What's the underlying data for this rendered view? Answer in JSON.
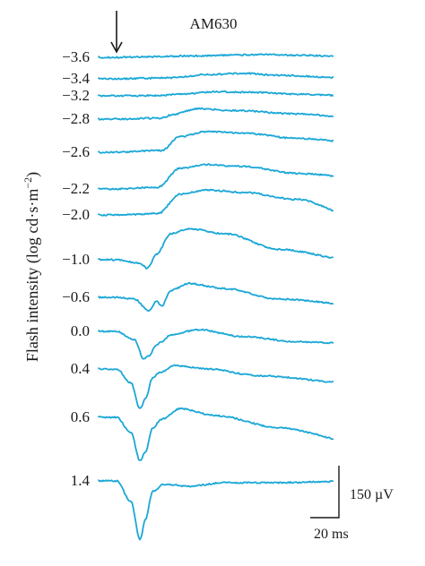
{
  "chart_data": {
    "type": "line",
    "title": "AM630",
    "ylabel": "Flash intensity (log cd·s·m⁻²)",
    "scalebar": {
      "amplitude_label": "150 µV",
      "time_label": "20 ms",
      "amplitude_uV": 150,
      "time_ms": 20
    },
    "stimulus_marker": "arrow",
    "x_unit": "ms",
    "y_unit": "µV",
    "series": [
      {
        "label": "−3.6",
        "intensity": -3.6,
        "points": [
          [
            0,
            0
          ],
          [
            20,
            -2
          ],
          [
            40,
            -4
          ],
          [
            60,
            -6
          ],
          [
            80,
            -8
          ],
          [
            100,
            -6
          ],
          [
            130,
            -2
          ]
        ]
      },
      {
        "label": "−3.4",
        "intensity": -3.4,
        "points": [
          [
            0,
            0
          ],
          [
            20,
            -2
          ],
          [
            30,
            -3
          ],
          [
            50,
            -12
          ],
          [
            70,
            -16
          ],
          [
            90,
            -10
          ],
          [
            130,
            -2
          ]
        ]
      },
      {
        "label": "−3.2",
        "intensity": -3.2,
        "points": [
          [
            0,
            0
          ],
          [
            25,
            -1
          ],
          [
            35,
            -5
          ],
          [
            55,
            -12
          ],
          [
            75,
            -10
          ],
          [
            100,
            -5
          ],
          [
            130,
            0
          ]
        ]
      },
      {
        "label": "−2.8",
        "intensity": -2.8,
        "points": [
          [
            0,
            0
          ],
          [
            25,
            -3
          ],
          [
            30,
            -12
          ],
          [
            45,
            -30
          ],
          [
            65,
            -25
          ],
          [
            100,
            -15
          ],
          [
            130,
            -5
          ]
        ]
      },
      {
        "label": "−2.6",
        "intensity": -2.6,
        "points": [
          [
            0,
            0
          ],
          [
            25,
            -5
          ],
          [
            35,
            -45
          ],
          [
            50,
            -60
          ],
          [
            70,
            -55
          ],
          [
            100,
            -40
          ],
          [
            130,
            -30
          ]
        ]
      },
      {
        "label": "−2.2",
        "intensity": -2.2,
        "points": [
          [
            0,
            0
          ],
          [
            23,
            -5
          ],
          [
            35,
            -60
          ],
          [
            50,
            -70
          ],
          [
            70,
            -65
          ],
          [
            100,
            -45
          ],
          [
            130,
            -35
          ]
        ]
      },
      {
        "label": "−2.0",
        "intensity": -2.0,
        "points": [
          [
            0,
            0
          ],
          [
            23,
            -4
          ],
          [
            35,
            -60
          ],
          [
            50,
            -72
          ],
          [
            70,
            -65
          ],
          [
            100,
            -45
          ],
          [
            130,
            0
          ]
        ]
      },
      {
        "label": "−1.0",
        "intensity": -1.0,
        "points": [
          [
            0,
            0
          ],
          [
            13,
            10
          ],
          [
            17,
            25
          ],
          [
            22,
            -15
          ],
          [
            30,
            -75
          ],
          [
            40,
            -90
          ],
          [
            60,
            -75
          ],
          [
            90,
            -30
          ],
          [
            130,
            0
          ]
        ]
      },
      {
        "label": "−0.6",
        "intensity": -0.6,
        "points": [
          [
            0,
            0
          ],
          [
            10,
            5
          ],
          [
            18,
            40
          ],
          [
            22,
            10
          ],
          [
            25,
            25
          ],
          [
            30,
            -20
          ],
          [
            40,
            -40
          ],
          [
            60,
            -25
          ],
          [
            90,
            5
          ],
          [
            130,
            20
          ]
        ]
      },
      {
        "label": "0.0",
        "intensity": 0.0,
        "points": [
          [
            0,
            0
          ],
          [
            10,
            25
          ],
          [
            15,
            80
          ],
          [
            18,
            70
          ],
          [
            22,
            40
          ],
          [
            25,
            30
          ],
          [
            30,
            10
          ],
          [
            45,
            -5
          ],
          [
            70,
            15
          ],
          [
            100,
            30
          ],
          [
            130,
            35
          ]
        ]
      },
      {
        "label": "0.4",
        "intensity": 0.4,
        "points": [
          [
            0,
            0
          ],
          [
            8,
            40
          ],
          [
            13,
            115
          ],
          [
            16,
            85
          ],
          [
            20,
            25
          ],
          [
            24,
            10
          ],
          [
            32,
            -10
          ],
          [
            50,
            0
          ],
          [
            80,
            20
          ],
          [
            130,
            40
          ]
        ]
      },
      {
        "label": "0.6",
        "intensity": 0.6,
        "points": [
          [
            0,
            0
          ],
          [
            8,
            45
          ],
          [
            13,
            125
          ],
          [
            16,
            100
          ],
          [
            20,
            30
          ],
          [
            25,
            5
          ],
          [
            35,
            -25
          ],
          [
            55,
            -5
          ],
          [
            90,
            30
          ],
          [
            130,
            68
          ]
        ]
      },
      {
        "label": "1.4",
        "intensity": 1.4,
        "points": [
          [
            0,
            0
          ],
          [
            8,
            60
          ],
          [
            13,
            170
          ],
          [
            16,
            110
          ],
          [
            20,
            30
          ],
          [
            26,
            10
          ],
          [
            40,
            15
          ],
          [
            60,
            5
          ],
          [
            90,
            5
          ],
          [
            130,
            0
          ]
        ]
      }
    ]
  }
}
